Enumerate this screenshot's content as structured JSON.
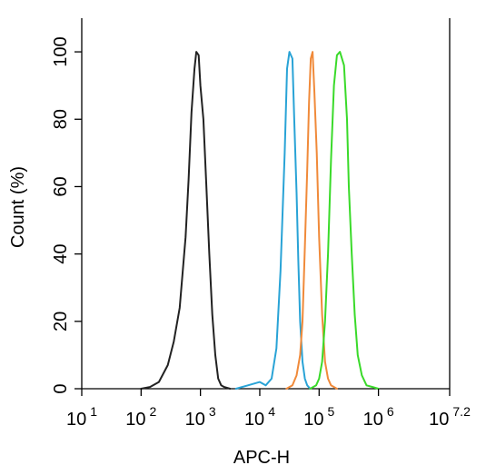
{
  "chart_data": {
    "type": "line",
    "title": "",
    "xlabel": "APC-H",
    "ylabel": "Count  (%)",
    "x_scale": "log10",
    "xlim": [
      1,
      7.2
    ],
    "ylim": [
      0,
      110
    ],
    "x_ticks": [
      {
        "base": "10",
        "exp": "1",
        "value": 1
      },
      {
        "base": "10",
        "exp": "2",
        "value": 2
      },
      {
        "base": "10",
        "exp": "3",
        "value": 3
      },
      {
        "base": "10",
        "exp": "4",
        "value": 4
      },
      {
        "base": "10",
        "exp": "5",
        "value": 5
      },
      {
        "base": "10",
        "exp": "6",
        "value": 6
      },
      {
        "base": "10",
        "exp": "7.2",
        "value": 7.2
      }
    ],
    "y_ticks": [
      "0",
      "20",
      "40",
      "60",
      "80",
      "100"
    ],
    "grid": false,
    "series": [
      {
        "color": "#222222",
        "x": [
          2.0,
          2.15,
          2.3,
          2.45,
          2.55,
          2.65,
          2.75,
          2.8,
          2.85,
          2.9,
          2.93,
          2.97,
          3.0,
          3.05,
          3.1,
          3.15,
          3.2,
          3.25,
          3.3,
          3.35,
          3.4,
          3.5
        ],
        "y": [
          0,
          0.5,
          2,
          7,
          14,
          24,
          45,
          62,
          82,
          95,
          100,
          99,
          90,
          80,
          60,
          40,
          22,
          10,
          3,
          1,
          0.5,
          0
        ]
      },
      {
        "color": "#29a3d6",
        "x": [
          3.6,
          3.8,
          4.0,
          4.1,
          4.2,
          4.28,
          4.35,
          4.42,
          4.46,
          4.5,
          4.55,
          4.58,
          4.62,
          4.65,
          4.68,
          4.72,
          4.76,
          4.8,
          4.85
        ],
        "y": [
          0,
          1,
          2,
          1,
          3,
          12,
          35,
          70,
          95,
          100,
          98,
          80,
          58,
          38,
          20,
          8,
          3,
          1,
          0
        ]
      },
      {
        "color": "#f08a3a",
        "x": [
          4.45,
          4.55,
          4.62,
          4.68,
          4.72,
          4.76,
          4.8,
          4.83,
          4.86,
          4.89,
          4.92,
          4.96,
          5.0,
          5.05,
          5.1,
          5.15,
          5.2,
          5.3
        ],
        "y": [
          0,
          1,
          4,
          10,
          20,
          42,
          65,
          85,
          98,
          100,
          88,
          70,
          45,
          22,
          8,
          3,
          1,
          0
        ]
      },
      {
        "color": "#3ada2a",
        "x": [
          4.85,
          4.95,
          5.0,
          5.05,
          5.1,
          5.15,
          5.2,
          5.25,
          5.3,
          5.35,
          5.42,
          5.47,
          5.5,
          5.55,
          5.6,
          5.65,
          5.72,
          5.8,
          5.9,
          6.0
        ],
        "y": [
          0,
          1,
          3,
          8,
          20,
          40,
          68,
          90,
          99,
          100,
          96,
          80,
          60,
          40,
          22,
          10,
          4,
          1,
          0.5,
          0
        ]
      }
    ]
  }
}
